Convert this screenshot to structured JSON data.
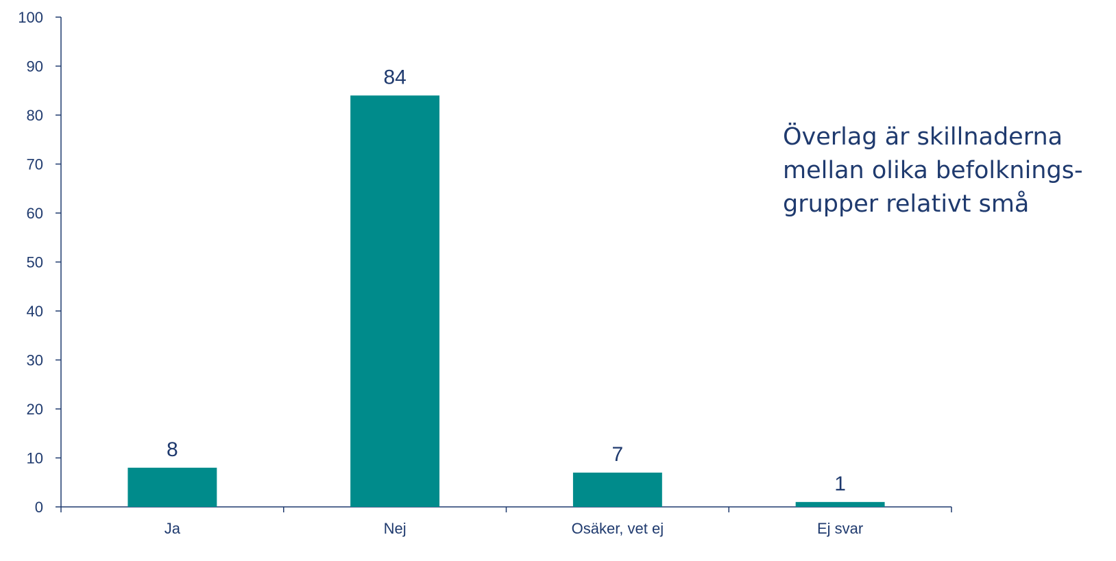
{
  "chart_data": {
    "type": "bar",
    "categories": [
      "Ja",
      "Nej",
      "Osäker, vet ej",
      "Ej svar"
    ],
    "values": [
      8,
      84,
      7,
      1
    ],
    "value_labels": [
      "8",
      "84",
      "7",
      "1"
    ],
    "ylim": [
      0,
      100
    ],
    "yticks": [
      0,
      10,
      20,
      30,
      40,
      50,
      60,
      70,
      80,
      90,
      100
    ],
    "title": "",
    "xlabel": "",
    "ylabel": "",
    "grid": false,
    "legend": "none",
    "bar_color": "#008B8B",
    "axis_color": "#1F3A6E",
    "text_color": "#1F3A6E",
    "annotation": [
      "Överlag är skillnaderna",
      "mellan olika befolknings-",
      "grupper relativt små"
    ]
  }
}
